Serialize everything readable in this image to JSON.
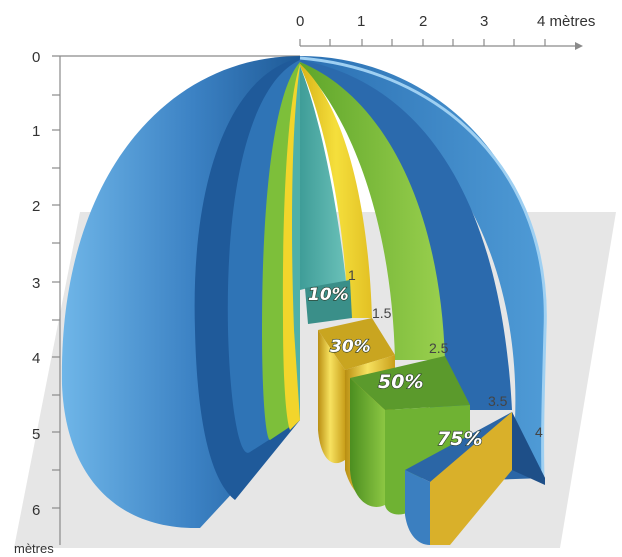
{
  "diagram": {
    "x_axis": {
      "ticks": [
        "0",
        "1",
        "2",
        "3"
      ],
      "last_tick": "4 mètres"
    },
    "y_axis": {
      "ticks": [
        "0",
        "1",
        "2",
        "3",
        "4",
        "5",
        "6"
      ],
      "unit": "mètres"
    },
    "depth_markers": [
      "1",
      "1.5",
      "2.5",
      "3.5",
      "4"
    ],
    "percent_labels": [
      "10%",
      "30%",
      "50%",
      "75%"
    ],
    "colors": {
      "outer_shell": "#3f86c6",
      "shell_dark": "#1f5a9a",
      "blue_band": "#2f74b6",
      "green_band": "#7dbf3a",
      "yellow_band": "#f2d52b",
      "teal_core": "#4fb0a8",
      "floor_plane": "#e6e6e6"
    }
  }
}
